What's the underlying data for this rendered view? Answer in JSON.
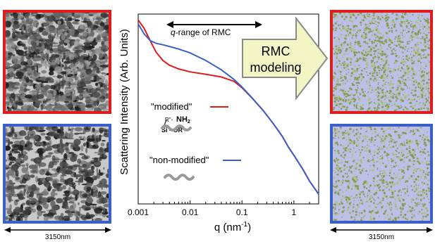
{
  "colors": {
    "modified": "#e01b1b",
    "non_modified": "#3a5fc8",
    "arrow_fill": "#f3f5c4",
    "arrow_stroke": "#8a8a8a",
    "chain": "#9a9a9a"
  },
  "left_panels": {
    "scale_label": "3150nm"
  },
  "right_panels": {
    "scale_label": "3150nm"
  },
  "arrow": {
    "line1": "RMC",
    "line2": "modeling"
  },
  "annotations": {
    "q_range_italic": "q",
    "q_range_rest": "-range of RMC",
    "modified_label": "\"modified\"",
    "non_modified_label": "\"non-modified\"",
    "chem_r": "R\"-",
    "chem_nh2": "NH",
    "chem_nh2_sub": "2",
    "chem_si": "Si - OR"
  },
  "chart_data": {
    "type": "line",
    "ylabel": "Scattering Intensity (Arb. Units)",
    "xlabel_main": "q (nm",
    "xlabel_sup": "-1",
    "xlabel_close": ")",
    "xscale": "log",
    "xlim": [
      0.001,
      3
    ],
    "yscale": "log",
    "ylim": [
      0.001,
      100
    ],
    "xticks": [
      "0.001",
      "0.01",
      "0.1",
      "1"
    ],
    "tick_values": [
      0.001,
      0.01,
      0.1,
      1
    ],
    "series": [
      {
        "key": "modified",
        "x": [
          0.001,
          0.0013,
          0.0017,
          0.0022,
          0.003,
          0.004,
          0.006,
          0.01,
          0.02,
          0.04,
          0.07,
          0.1,
          0.15,
          0.25,
          0.4,
          0.6,
          0.8,
          1.0,
          1.5,
          2.0,
          3.0
        ],
        "y": [
          70,
          42,
          20,
          10,
          6,
          4.5,
          3.6,
          3.0,
          2.6,
          2.2,
          1.7,
          1.15,
          0.65,
          0.3,
          0.13,
          0.06,
          0.03,
          0.019,
          0.008,
          0.004,
          0.0018
        ]
      },
      {
        "key": "non_modified",
        "x": [
          0.001,
          0.0013,
          0.0017,
          0.0022,
          0.003,
          0.004,
          0.006,
          0.01,
          0.02,
          0.04,
          0.07,
          0.1,
          0.15,
          0.25,
          0.4,
          0.6,
          0.8,
          1.0,
          1.5,
          2.0,
          3.0
        ],
        "y": [
          55,
          30,
          20,
          17,
          15.5,
          14,
          12,
          9.5,
          6,
          3.4,
          1.9,
          1.2,
          0.66,
          0.3,
          0.13,
          0.06,
          0.03,
          0.019,
          0.008,
          0.004,
          0.0018
        ]
      }
    ]
  }
}
